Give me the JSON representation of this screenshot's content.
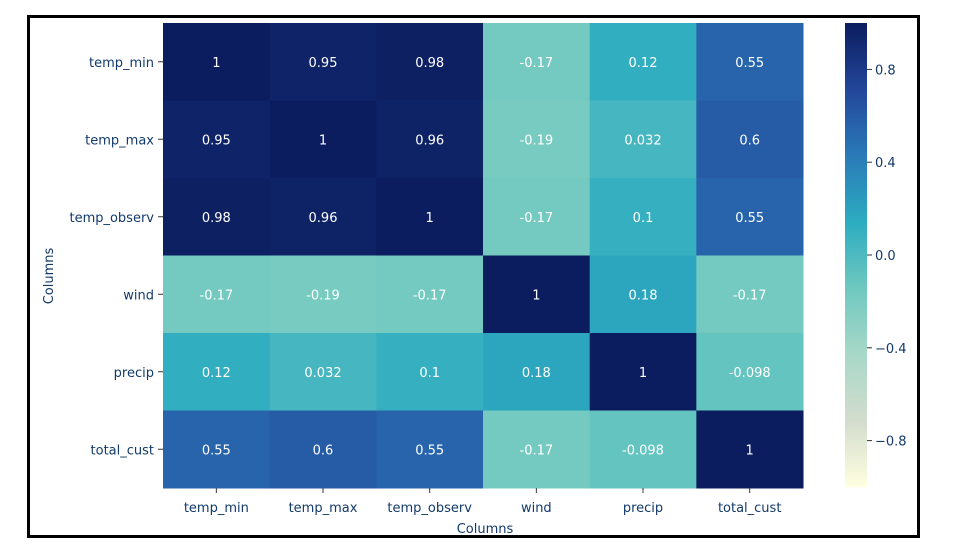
{
  "chart_data": {
    "type": "heatmap",
    "xlabel": "Columns",
    "ylabel": "Columns",
    "columns": [
      "temp_min",
      "temp_max",
      "temp_observ",
      "wind",
      "precip",
      "total_cust"
    ],
    "rows": [
      "temp_min",
      "temp_max",
      "temp_observ",
      "wind",
      "precip",
      "total_cust"
    ],
    "values": [
      [
        1,
        0.95,
        0.98,
        -0.17,
        0.12,
        0.55
      ],
      [
        0.95,
        1,
        0.96,
        -0.19,
        0.032,
        0.6
      ],
      [
        0.98,
        0.96,
        1,
        -0.17,
        0.1,
        0.55
      ],
      [
        -0.17,
        -0.19,
        -0.17,
        1,
        0.18,
        -0.17
      ],
      [
        0.12,
        0.032,
        0.1,
        0.18,
        1,
        -0.098
      ],
      [
        0.55,
        0.6,
        0.55,
        -0.17,
        -0.098,
        1
      ]
    ],
    "labels": [
      [
        "1",
        "0.95",
        "0.98",
        "-0.17",
        "0.12",
        "0.55"
      ],
      [
        "0.95",
        "1",
        "0.96",
        "-0.19",
        "0.032",
        "0.6"
      ],
      [
        "0.98",
        "0.96",
        "1",
        "-0.17",
        "0.1",
        "0.55"
      ],
      [
        "-0.17",
        "-0.19",
        "-0.17",
        "1",
        "0.18",
        "-0.17"
      ],
      [
        "0.12",
        "0.032",
        "0.1",
        "0.18",
        "1",
        "-0.098"
      ],
      [
        "0.55",
        "0.6",
        "0.55",
        "-0.17",
        "-0.098",
        "1"
      ]
    ],
    "colorbar": {
      "range": [
        -1,
        1
      ],
      "ticks": [
        0.8,
        0.4,
        0.0,
        -0.4,
        -0.8
      ],
      "tick_labels": [
        "0.8",
        "0.4",
        "0.0",
        "−0.4",
        "−0.8"
      ],
      "colormap": "YlGnBu",
      "stops": [
        "#ffffe0",
        "#d2dccd",
        "#a8d8c8",
        "#6ec8bf",
        "#2cacc0",
        "#2a7ab8",
        "#23469a",
        "#0b1d5e"
      ]
    },
    "label_color": "#ffffff",
    "tick_color": "#123a6b"
  }
}
